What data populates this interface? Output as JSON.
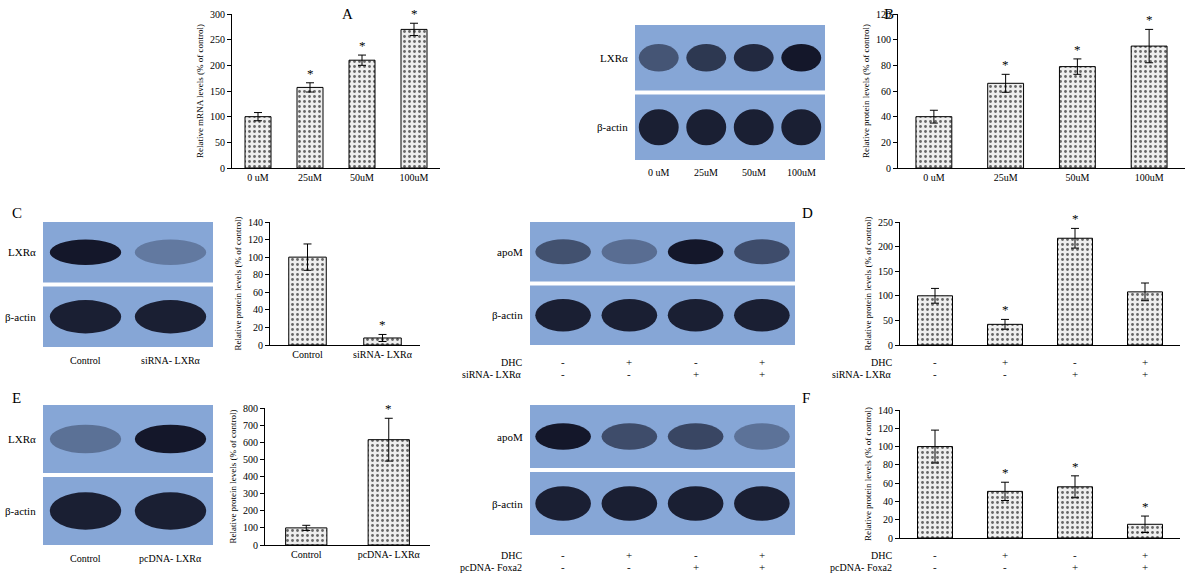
{
  "chart_data": [
    {
      "panel": "A",
      "type": "bar",
      "ylabel": "Relative mRNA levels (% of control)",
      "categories": [
        "0 uM",
        "25uM",
        "50uM",
        "100uM"
      ],
      "values": [
        100,
        157,
        210,
        270
      ],
      "errors": [
        8,
        9,
        10,
        12
      ],
      "significant": [
        false,
        true,
        true,
        true
      ],
      "significance_label": "*",
      "color": "#eeeeee",
      "ylim": [
        0,
        300
      ],
      "yticks": [
        0,
        50,
        100,
        150,
        200,
        250,
        300
      ],
      "grid": false
    },
    {
      "panel": "B",
      "type": "bar",
      "ylabel": "Relative protein levels (% of control)",
      "categories": [
        "0 uM",
        "25uM",
        "50uM",
        "100uM"
      ],
      "values": [
        40,
        66,
        79,
        95
      ],
      "errors": [
        5,
        7,
        6,
        13
      ],
      "significant": [
        false,
        true,
        true,
        true
      ],
      "significance_label": "*",
      "color": "#eeeeee",
      "ylim": [
        0,
        120
      ],
      "yticks": [
        0,
        20,
        40,
        60,
        80,
        100,
        120
      ],
      "grid": false,
      "blot": {
        "rows": [
          "LXRα",
          "β-actin"
        ],
        "lanes": [
          "0 uM",
          "25uM",
          "50uM",
          "100uM"
        ]
      }
    },
    {
      "panel": "C",
      "type": "bar",
      "ylabel": "Relative protein levels (% of control)",
      "categories": [
        "Control",
        "siRNA- LXRα"
      ],
      "values": [
        100,
        8
      ],
      "errors": [
        15,
        4
      ],
      "significant": [
        false,
        true
      ],
      "significance_label": "*",
      "color": "#eeeeee",
      "ylim": [
        0,
        140
      ],
      "yticks": [
        0,
        20,
        40,
        60,
        80,
        100,
        120,
        140
      ],
      "grid": false,
      "blot": {
        "rows": [
          "LXRα",
          "β-actin"
        ],
        "lanes": [
          "Control",
          "siRNA- LXRα"
        ]
      }
    },
    {
      "panel": "D",
      "type": "bar",
      "ylabel": "Relative protein levels (% of control)",
      "treatments": [
        {
          "name": "DHC",
          "signs": [
            "-",
            "+",
            "-",
            "+"
          ]
        },
        {
          "name": "siRNA- LXRα",
          "signs": [
            "-",
            "-",
            "+",
            "+"
          ]
        }
      ],
      "tick_labels": "y",
      "values": [
        100,
        42,
        217,
        108
      ],
      "errors": [
        15,
        10,
        20,
        18
      ],
      "significant": [
        false,
        true,
        true,
        false
      ],
      "significance_label": "*",
      "color": "#eeeeee",
      "ylim": [
        0,
        250
      ],
      "yticks": [
        0,
        50,
        100,
        150,
        200,
        250
      ],
      "grid": false,
      "blot": {
        "rows": [
          "apoM",
          "β-actin"
        ]
      }
    },
    {
      "panel": "E",
      "type": "bar",
      "ylabel": "Relative protein levels (% of control)",
      "categories": [
        "Control",
        "pcDNA- LXRα"
      ],
      "values": [
        100,
        615
      ],
      "errors": [
        15,
        125
      ],
      "significant": [
        false,
        true
      ],
      "significance_label": "*",
      "color": "#eeeeee",
      "ylim": [
        0,
        800
      ],
      "yticks": [
        0,
        100,
        200,
        300,
        400,
        500,
        600,
        700,
        800
      ],
      "grid": false,
      "blot": {
        "rows": [
          "LXRα",
          "β-actin"
        ],
        "lanes": [
          "Control",
          "pcDNA- LXRα"
        ]
      }
    },
    {
      "panel": "F",
      "type": "bar",
      "ylabel": "Relative protein levels (% of control)",
      "treatments": [
        {
          "name": "DHC",
          "signs": [
            "-",
            "+",
            "-",
            "+"
          ]
        },
        {
          "name": "pcDNA- Foxa2",
          "signs": [
            "-",
            "-",
            "+",
            "+"
          ]
        }
      ],
      "tick_labels": "y",
      "values": [
        100,
        51,
        56,
        15
      ],
      "errors": [
        18,
        10,
        12,
        9
      ],
      "significant": [
        false,
        true,
        true,
        true
      ],
      "significance_label": "*",
      "color": "#eeeeee",
      "ylim": [
        0,
        140
      ],
      "yticks": [
        0,
        20,
        40,
        60,
        80,
        100,
        120,
        140
      ],
      "grid": false,
      "blot": {
        "rows": [
          "apoM",
          "β-actin"
        ]
      }
    }
  ]
}
